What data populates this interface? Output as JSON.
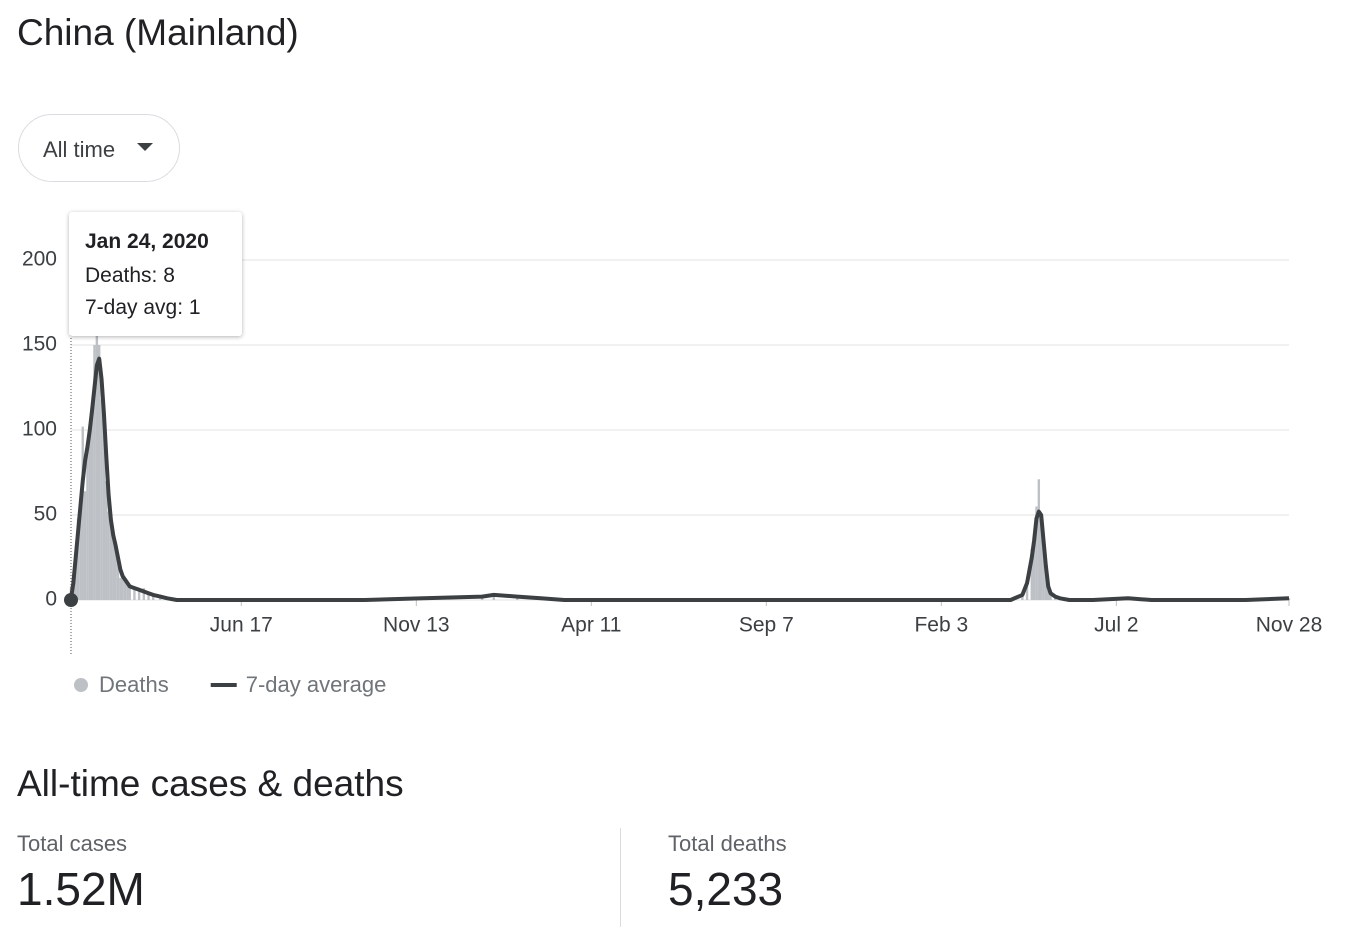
{
  "header": {
    "title": "China (Mainland)"
  },
  "filter": {
    "label": "All time"
  },
  "chart_data": {
    "type": "combo",
    "x": [
      0,
      2,
      4,
      6,
      8,
      10,
      12,
      14,
      16,
      18,
      20,
      22,
      24,
      26,
      28,
      30,
      32,
      34,
      36,
      38,
      40,
      42,
      44,
      46,
      48,
      50,
      54,
      58,
      62,
      66,
      70,
      76,
      82,
      90,
      100,
      120,
      150,
      200,
      250,
      300,
      350,
      360,
      380,
      400,
      420,
      450,
      500,
      550,
      600,
      650,
      700,
      750,
      780,
      800,
      810,
      814,
      818,
      820,
      822,
      824,
      826,
      828,
      830,
      832,
      834,
      838,
      842,
      850,
      870,
      900,
      920,
      950,
      1000,
      1037
    ],
    "xlim": [
      0,
      1037
    ],
    "xticks": [
      {
        "value": 145,
        "label": "Jun 17"
      },
      {
        "value": 294,
        "label": "Nov 13"
      },
      {
        "value": 443,
        "label": "Apr 11"
      },
      {
        "value": 592,
        "label": "Sep 7"
      },
      {
        "value": 741,
        "label": "Feb 3"
      },
      {
        "value": 890,
        "label": "Jul 2"
      },
      {
        "value": 1037,
        "label": "Nov 28"
      }
    ],
    "ylim": [
      0,
      200
    ],
    "yticks": [
      0,
      50,
      100,
      150,
      200
    ],
    "grid": true,
    "series": [
      {
        "name": "Deaths",
        "type": "bar",
        "color": "#bdc1c6",
        "values": [
          8,
          15,
          30,
          48,
          52,
          102,
          64,
          88,
          97,
          108,
          150,
          160,
          150,
          118,
          105,
          70,
          52,
          47,
          35,
          30,
          22,
          13,
          15,
          11,
          10,
          7,
          8,
          5,
          7,
          4,
          3,
          2,
          1,
          0,
          0,
          0,
          0,
          0,
          0,
          1,
          3,
          4,
          2,
          1,
          0,
          0,
          0,
          0,
          0,
          0,
          0,
          0,
          0,
          0,
          4,
          12,
          30,
          38,
          55,
          71,
          48,
          30,
          15,
          6,
          3,
          2,
          1,
          0,
          0,
          1,
          0,
          0,
          0,
          1
        ]
      },
      {
        "name": "7-day average",
        "type": "line",
        "color": "#3c4043",
        "values": [
          1,
          10,
          25,
          40,
          55,
          70,
          82,
          90,
          100,
          112,
          125,
          138,
          142,
          130,
          110,
          85,
          62,
          47,
          38,
          32,
          25,
          18,
          14,
          12,
          10,
          8,
          7,
          6,
          5,
          4,
          3,
          2,
          1,
          0,
          0,
          0,
          0,
          0,
          0,
          1,
          2,
          3,
          2,
          1,
          0,
          0,
          0,
          0,
          0,
          0,
          0,
          0,
          0,
          0,
          3,
          10,
          25,
          35,
          48,
          52,
          50,
          35,
          20,
          8,
          4,
          2,
          1,
          0,
          0,
          1,
          0,
          0,
          0,
          1
        ]
      }
    ],
    "tooltip": {
      "title": "Jan 24, 2020",
      "lines": [
        "Deaths: 8",
        "7-day avg: 1"
      ]
    }
  },
  "stats": {
    "title": "All-time cases & deaths",
    "items": [
      {
        "label": "Total cases",
        "value": "1.52M"
      },
      {
        "label": "Total deaths",
        "value": "5,233"
      }
    ]
  }
}
